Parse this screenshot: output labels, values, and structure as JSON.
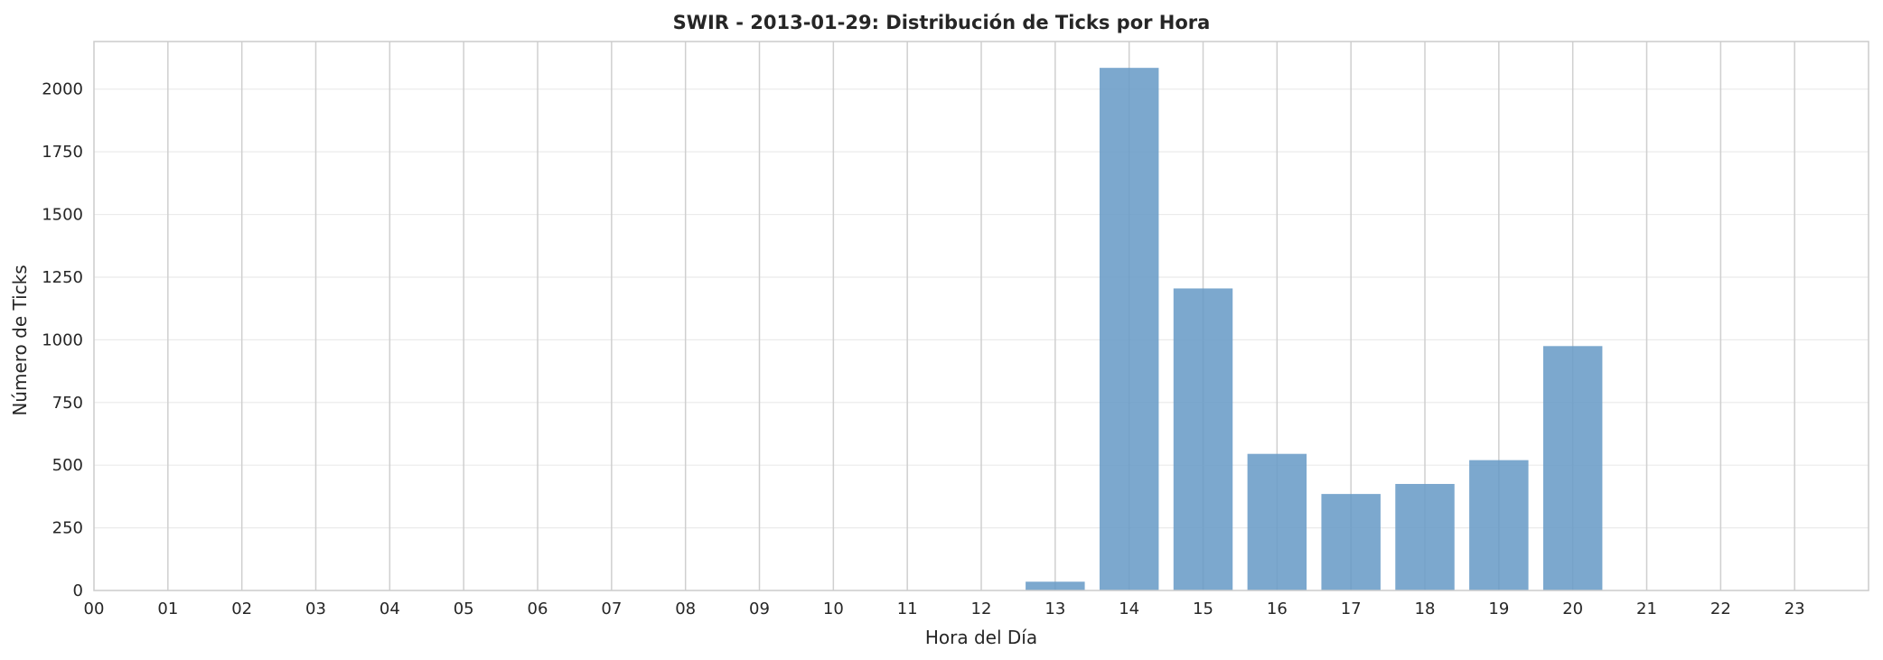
{
  "chart_data": {
    "type": "bar",
    "title": "SWIR - 2013-01-29: Distribución de Ticks por Hora",
    "xlabel": "Hora del Día",
    "ylabel": "Número de Ticks",
    "categories": [
      "00",
      "01",
      "02",
      "03",
      "04",
      "05",
      "06",
      "07",
      "08",
      "09",
      "10",
      "11",
      "12",
      "13",
      "14",
      "15",
      "16",
      "17",
      "18",
      "19",
      "20",
      "21",
      "22",
      "23"
    ],
    "values": [
      0,
      0,
      0,
      0,
      0,
      0,
      0,
      0,
      0,
      0,
      0,
      0,
      0,
      35,
      2085,
      1205,
      545,
      385,
      425,
      520,
      975,
      0,
      0,
      0
    ],
    "yticks": [
      0,
      250,
      500,
      750,
      1000,
      1250,
      1500,
      1750,
      2000
    ],
    "ylim": [
      0,
      2190
    ],
    "xlim": [
      0,
      24
    ],
    "grid": true,
    "bar_color": "#6a9cc7"
  }
}
